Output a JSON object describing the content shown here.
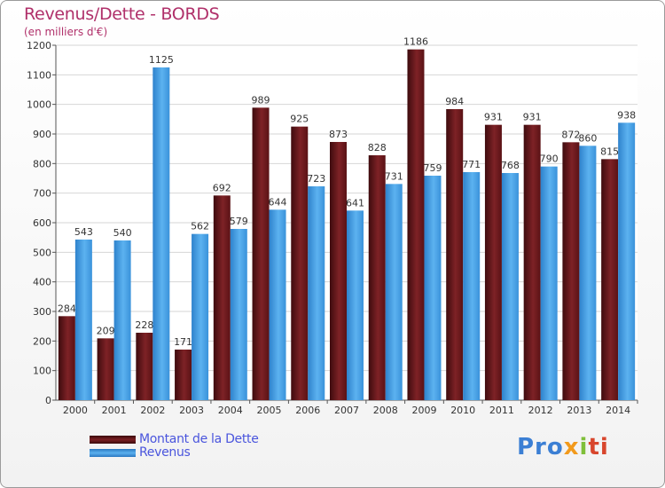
{
  "chart_data": {
    "type": "bar",
    "title": "Revenus/Dette - BORDS",
    "subtitle": "(en milliers d'€)",
    "categories": [
      "2000",
      "2001",
      "2002",
      "2003",
      "2004",
      "2005",
      "2006",
      "2007",
      "2008",
      "2009",
      "2010",
      "2011",
      "2012",
      "2013",
      "2014"
    ],
    "series": [
      {
        "name": "Montant de la Dette",
        "color": "#7a1e22",
        "values": [
          284,
          209,
          228,
          171,
          692,
          989,
          925,
          873,
          828,
          1186,
          984,
          931,
          931,
          872,
          815
        ]
      },
      {
        "name": "Revenus",
        "color": "#4aa3e6",
        "values": [
          543,
          540,
          1125,
          562,
          579,
          644,
          723,
          641,
          731,
          759,
          771,
          768,
          790,
          860,
          938
        ]
      }
    ],
    "ylim": [
      0,
      1200
    ],
    "yticks": [
      0,
      100,
      200,
      300,
      400,
      500,
      600,
      700,
      800,
      900,
      1000,
      1100,
      1200
    ],
    "grid": true,
    "legend_position": "bottom-left"
  },
  "logo": {
    "text_parts": [
      "Pro",
      "x",
      "i",
      "ti"
    ]
  }
}
